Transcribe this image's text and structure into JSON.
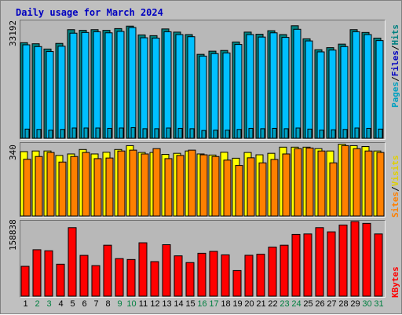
{
  "title": "Daily usage for March 2024",
  "legend": {
    "top": [
      {
        "label": "Pages",
        "color": "#00a0c0"
      },
      {
        "label": "Files",
        "color": "#0000c0"
      },
      {
        "label": "Hits",
        "color": "#008080"
      }
    ],
    "middle": [
      {
        "label": "Sites",
        "color": "#ff8000"
      },
      {
        "label": "Visits",
        "color": "#e0d000"
      }
    ],
    "bottom": [
      {
        "label": "KBytes",
        "color": "#ff0000"
      }
    ],
    "separator": "/"
  },
  "colors": {
    "hits": "#008080",
    "files": "#00c0ff",
    "pages": "#00a0c0",
    "visits": "#ffff00",
    "sites": "#ff8000",
    "kbytes": "#ff0000",
    "weekday_label": "#000000",
    "weekend_label": "#008040"
  },
  "chart_data": [
    {
      "type": "bar",
      "title": "Daily usage for March 2024",
      "categories": [
        "1",
        "2",
        "3",
        "4",
        "5",
        "6",
        "7",
        "8",
        "9",
        "10",
        "11",
        "12",
        "13",
        "14",
        "15",
        "16",
        "17",
        "18",
        "19",
        "20",
        "21",
        "22",
        "23",
        "24",
        "25",
        "26",
        "27",
        "28",
        "29",
        "30",
        "31"
      ],
      "weekend_days": [
        "2",
        "3",
        "9",
        "10",
        "16",
        "17",
        "23",
        "24",
        "30",
        "31"
      ],
      "y_max_label": "33192",
      "ylim": [
        0,
        33192
      ],
      "series": [
        {
          "name": "Hits",
          "values": [
            27100,
            26800,
            25300,
            26900,
            30800,
            30600,
            30800,
            30600,
            31100,
            31800,
            29300,
            29100,
            31000,
            30100,
            29400,
            23800,
            24700,
            24900,
            27300,
            30100,
            29500,
            30500,
            29400,
            31900,
            28200,
            25100,
            25700,
            26700,
            30800,
            30000,
            28400
          ]
        },
        {
          "name": "Files",
          "values": [
            26500,
            26000,
            24600,
            26100,
            29800,
            30000,
            30200,
            29900,
            30300,
            31400,
            28500,
            28400,
            30200,
            29400,
            28800,
            23300,
            24000,
            24200,
            26600,
            29400,
            28700,
            29900,
            28600,
            30900,
            27600,
            24500,
            25000,
            26000,
            30200,
            29400,
            27700
          ]
        },
        {
          "name": "Pages",
          "values": [
            2600,
            2500,
            2300,
            2500,
            2900,
            2900,
            2900,
            2800,
            2900,
            3000,
            2700,
            2700,
            2900,
            2800,
            2700,
            2200,
            2300,
            2300,
            2500,
            2800,
            2700,
            2800,
            2700,
            2900,
            2600,
            2300,
            2400,
            2500,
            2900,
            2800,
            2600
          ]
        }
      ]
    },
    {
      "type": "bar",
      "categories": [
        "1",
        "2",
        "3",
        "4",
        "5",
        "6",
        "7",
        "8",
        "9",
        "10",
        "11",
        "12",
        "13",
        "14",
        "15",
        "16",
        "17",
        "18",
        "19",
        "20",
        "21",
        "22",
        "23",
        "24",
        "25",
        "26",
        "27",
        "28",
        "29",
        "30",
        "31"
      ],
      "y_max_label": "340",
      "ylim": [
        0,
        340
      ],
      "series": [
        {
          "name": "Visits",
          "values": [
            303,
            306,
            306,
            285,
            292,
            313,
            292,
            300,
            313,
            331,
            299,
            299,
            290,
            295,
            306,
            292,
            287,
            300,
            272,
            299,
            288,
            295,
            324,
            324,
            324,
            317,
            306,
            338,
            331,
            327,
            306
          ]
        },
        {
          "name": "Sites",
          "values": [
            267,
            280,
            299,
            254,
            280,
            299,
            270,
            273,
            306,
            310,
            292,
            317,
            270,
            285,
            310,
            288,
            280,
            263,
            238,
            274,
            250,
            266,
            292,
            317,
            320,
            306,
            250,
            331,
            317,
            306,
            299
          ]
        }
      ]
    },
    {
      "type": "bar",
      "categories": [
        "1",
        "2",
        "3",
        "4",
        "5",
        "6",
        "7",
        "8",
        "9",
        "10",
        "11",
        "12",
        "13",
        "14",
        "15",
        "16",
        "17",
        "18",
        "19",
        "20",
        "21",
        "22",
        "23",
        "24",
        "25",
        "26",
        "27",
        "28",
        "29",
        "30",
        "31"
      ],
      "y_max_label": "158838",
      "ylim": [
        0,
        158838
      ],
      "series": [
        {
          "name": "KBytes",
          "values": [
            63500,
            98800,
            96600,
            68000,
            145800,
            86800,
            65000,
            108400,
            79900,
            78000,
            113600,
            73500,
            109500,
            85800,
            71500,
            91300,
            95300,
            87900,
            54500,
            87000,
            89200,
            104500,
            108400,
            131400,
            132400,
            145800,
            136900,
            151400,
            158800,
            154900,
            132400
          ]
        }
      ]
    }
  ]
}
